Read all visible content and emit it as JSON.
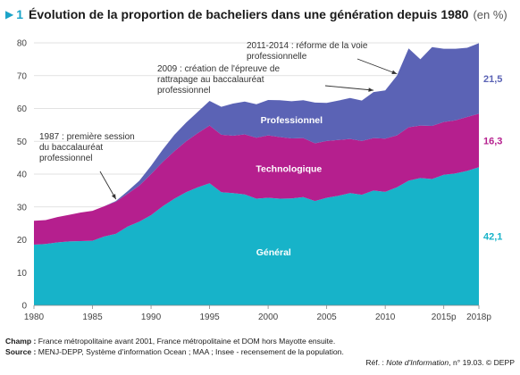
{
  "header": {
    "number": "1",
    "title": "Évolution de la proportion de bacheliers dans une génération depuis 1980",
    "unit": "(en %)"
  },
  "colors": {
    "accent": "#1aa3c8",
    "general": "#17b3c9",
    "technologique": "#b51f8e",
    "professionnel": "#5b63b5"
  },
  "chart_data": {
    "type": "area",
    "stacked": true,
    "x": [
      1980,
      1981,
      1982,
      1983,
      1984,
      1985,
      1986,
      1987,
      1988,
      1989,
      1990,
      1991,
      1992,
      1993,
      1994,
      1995,
      1996,
      1997,
      1998,
      1999,
      2000,
      2001,
      2002,
      2003,
      2004,
      2005,
      2006,
      2007,
      2008,
      2009,
      2010,
      2011,
      2012,
      2013,
      2014,
      2015,
      2016,
      2017,
      2018
    ],
    "series": [
      {
        "name": "Général",
        "color": "#17b3c9",
        "values": [
          18.5,
          18.7,
          19.2,
          19.5,
          19.6,
          19.7,
          21.0,
          21.8,
          24.0,
          25.5,
          27.5,
          30.2,
          32.5,
          34.5,
          36.0,
          37.2,
          34.5,
          34.2,
          33.8,
          32.5,
          32.8,
          32.5,
          32.6,
          33.0,
          31.8,
          32.8,
          33.4,
          34.2,
          33.7,
          35.0,
          34.6,
          36.0,
          38.0,
          38.8,
          38.5,
          39.8,
          40.2,
          41.0,
          42.1
        ]
      },
      {
        "name": "Technologique",
        "color": "#b51f8e",
        "values": [
          7.3,
          7.3,
          7.7,
          8.1,
          8.7,
          9.1,
          9.2,
          9.8,
          10.0,
          11.0,
          12.5,
          13.5,
          14.5,
          15.5,
          16.5,
          17.6,
          17.5,
          17.5,
          18.3,
          18.6,
          19.0,
          18.8,
          18.3,
          18.0,
          17.6,
          17.3,
          17.0,
          16.5,
          16.4,
          16.0,
          16.2,
          15.8,
          16.3,
          16.0,
          16.2,
          16.1,
          16.2,
          16.4,
          16.3
        ]
      },
      {
        "name": "Professionnel",
        "color": "#5b63b5",
        "values": [
          0,
          0,
          0,
          0,
          0,
          0,
          0,
          0.2,
          0.8,
          1.5,
          2.5,
          3.8,
          5.0,
          5.7,
          6.5,
          7.5,
          8.5,
          9.8,
          10.0,
          10.2,
          10.8,
          11.2,
          11.3,
          11.5,
          12.4,
          11.6,
          12.0,
          12.5,
          12.3,
          14.0,
          14.7,
          18.2,
          24.0,
          20.2,
          24.0,
          22.3,
          21.8,
          21.1,
          21.5
        ]
      }
    ],
    "area_labels": [
      "Général",
      "Technologique",
      "Professionnel"
    ],
    "end_values": [
      "42,1",
      "16,3",
      "21,5"
    ],
    "x_ticks": [
      "1980",
      "1985",
      "1990",
      "1995",
      "2000",
      "2005",
      "2010",
      "2015p",
      "2018p"
    ],
    "x_tick_values": [
      1980,
      1985,
      1990,
      1995,
      2000,
      2005,
      2010,
      2015,
      2018
    ],
    "y_ticks": [
      "0",
      "10",
      "20",
      "30",
      "40",
      "50",
      "60",
      "70",
      "80"
    ],
    "y_tick_values": [
      0,
      10,
      20,
      30,
      40,
      50,
      60,
      70,
      80
    ],
    "ylim": [
      0,
      80
    ],
    "xlim": [
      1980,
      2018
    ],
    "grid": true,
    "annotations": [
      {
        "lines": [
          "1987 : première session",
          "du baccalauréat",
          "professionnel"
        ],
        "target_year": 1987
      },
      {
        "lines": [
          "2009 : création de l'épreuve de",
          "rattrapage au baccalauréat",
          "professionnel"
        ],
        "target_year": 2009
      },
      {
        "lines": [
          "2011-2014 : réforme de la voie",
          "professionnelle"
        ],
        "target_year": 2011
      }
    ]
  },
  "footer": {
    "champ_label": "Champ :",
    "champ_text": "France métropolitaine avant 2001, France métropolitaine et DOM hors Mayotte ensuite.",
    "source_label": "Source :",
    "source_text": "MENJ-DEPP, Système d'information Ocean ; MAA ; Insee - recensement de la population.",
    "ref_prefix": "Réf. :",
    "ref_italic": "Note d'Information",
    "ref_suffix": ", n° 19.03. © DEPP"
  }
}
